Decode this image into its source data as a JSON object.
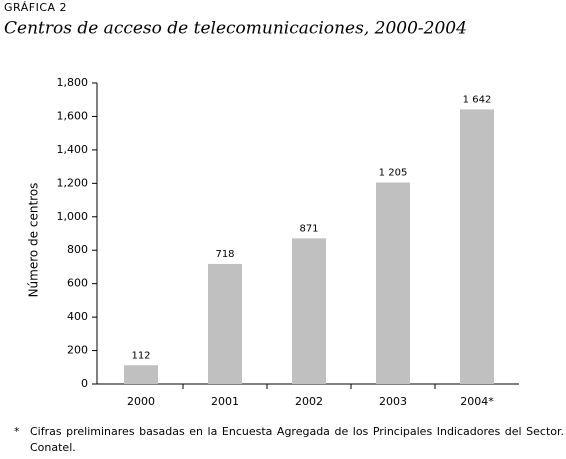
{
  "chart_data": {
    "type": "bar",
    "label": "GRÁFICA 2",
    "title": "Centros de acceso de telecomunicaciones, 2000-2004",
    "ylabel": "Número de centros",
    "categories": [
      "2000",
      "2001",
      "2002",
      "2003",
      "2004*"
    ],
    "values": [
      112,
      718,
      871,
      1205,
      1642
    ],
    "value_labels": [
      "112",
      "718",
      "871",
      "1 205",
      "1 642"
    ],
    "color": "#c0c0c0",
    "ylim": [
      0,
      1800
    ],
    "yticks": [
      0,
      200,
      400,
      600,
      800,
      {
        "value": 1000,
        "label": "1,000"
      },
      {
        "value": 1200,
        "label": "1,200"
      },
      {
        "value": 1400,
        "label": "1,400"
      },
      {
        "value": 1600,
        "label": "1,600"
      },
      {
        "value": 1800,
        "label": "1,800"
      }
    ],
    "grid": false,
    "footnote_marker": "*",
    "footnote": "Cifras preliminares basadas en la Encuesta Agregada de los Principales Indicadores del Sector. Conatel."
  }
}
